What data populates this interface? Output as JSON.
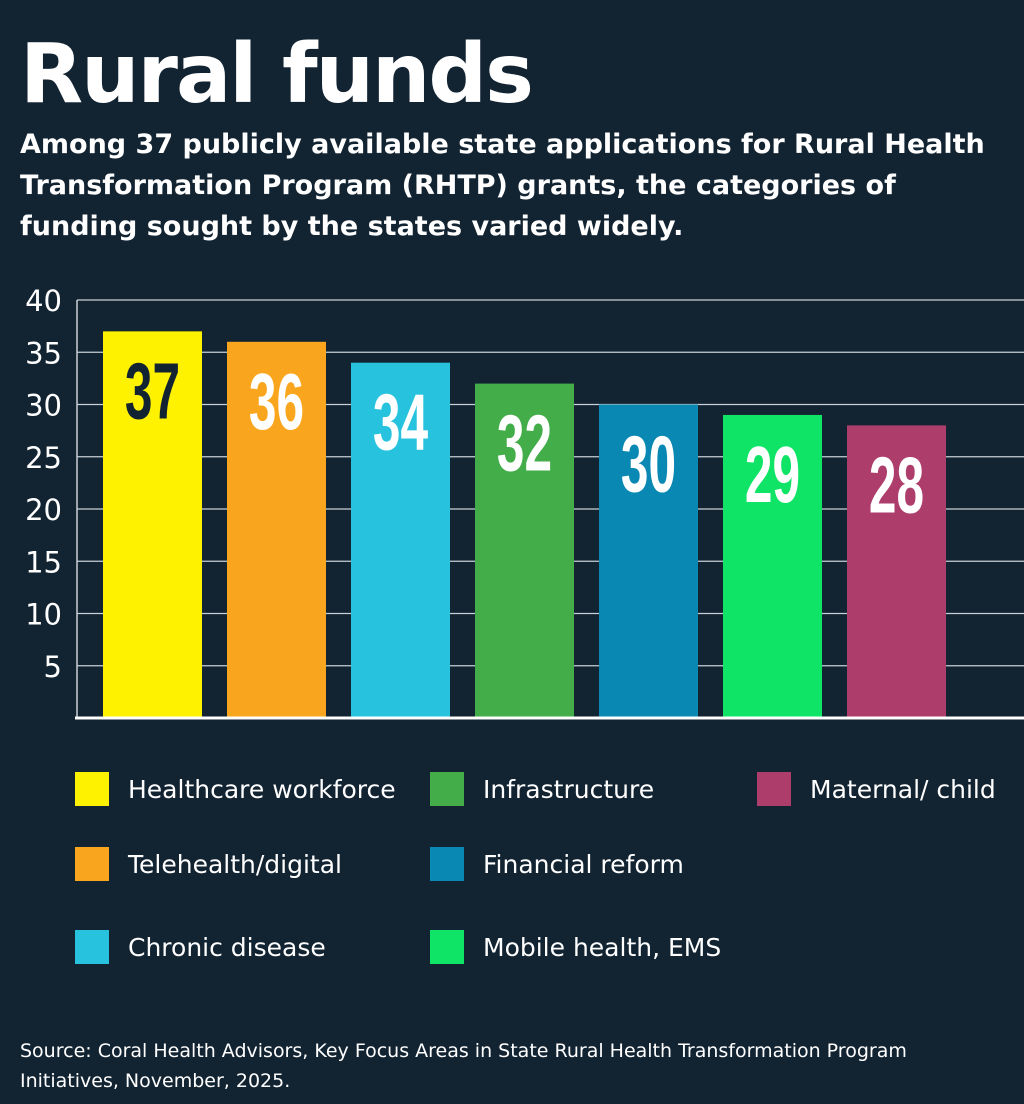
{
  "title": "Rural funds",
  "subtitle": "Among 37 publicly available state applications for Rural Health Transformation Program (RHTP) grants, the categories of funding sought by the states varied widely.",
  "source": "Source: Coral Health Advisors, Key Focus Areas in State Rural Health Transformation Program Initiatives, November, 2025.",
  "chart_data": {
    "type": "bar",
    "categories": [
      "Healthcare workforce",
      "Telehealth/digital",
      "Chronic disease",
      "Infrastructure",
      "Financial reform",
      "Mobile health, EMS",
      "Maternal/ child"
    ],
    "values": [
      37,
      36,
      34,
      32,
      30,
      29,
      28
    ],
    "colors": [
      "#fff200",
      "#f9a61e",
      "#27c3de",
      "#43ad4a",
      "#0888b2",
      "#10e466",
      "#ad3e6c"
    ],
    "label_colors": [
      "#122332",
      "#ffffff",
      "#ffffff",
      "#ffffff",
      "#ffffff",
      "#ffffff",
      "#ffffff"
    ],
    "yticks": [
      5,
      10,
      15,
      20,
      25,
      30,
      35,
      40
    ],
    "ylim": [
      0,
      40
    ],
    "grid": true,
    "legend_placement": "bottom"
  }
}
